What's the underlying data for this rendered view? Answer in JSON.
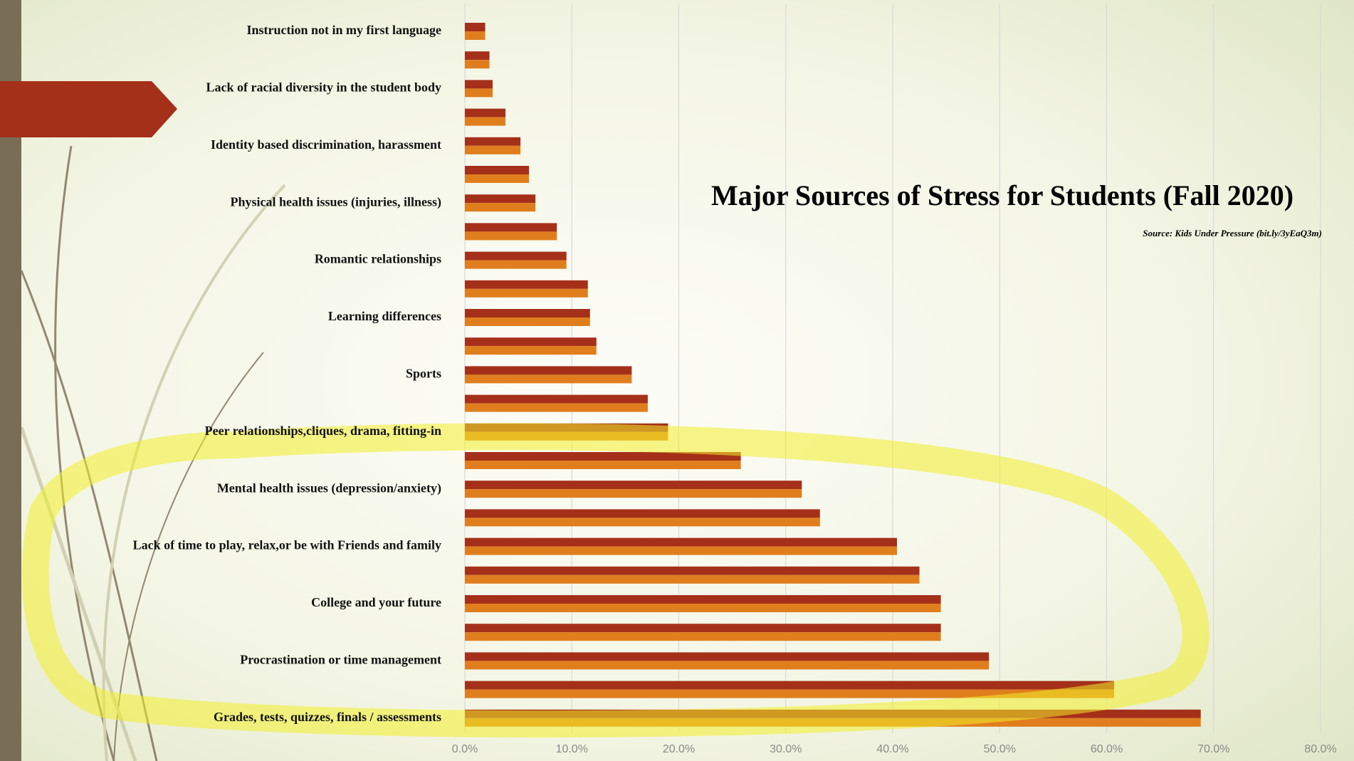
{
  "chart_data": {
    "type": "barh",
    "title": "Major Sources of Stress for Students (Fall 2020)",
    "subtitle": "Source: Kids Under Pressure (bit.ly/3yEaQ3m)",
    "categories": [
      "Instruction not in my first language",
      null,
      "Lack of racial diversity in the student body",
      null,
      "Identity based discrimination, harassment",
      null,
      "Physical health issues (injuries, illness)",
      null,
      "Romantic relationships",
      null,
      "Learning differences",
      null,
      "Sports",
      null,
      "Peer relationships,cliques, drama, fitting-in",
      null,
      "Mental health issues (depression/anxiety)",
      null,
      "Lack of time to play, relax,or be with Friends and family",
      null,
      "College and your future",
      null,
      "Procrastination or time management",
      null,
      "Grades, tests, quizzes, finals / assessments"
    ],
    "series": [
      {
        "color": "#a5301a",
        "values": [
          1.9,
          2.3,
          2.6,
          3.8,
          5.2,
          6.0,
          6.6,
          8.6,
          9.5,
          11.5,
          11.7,
          12.3,
          15.6,
          17.1,
          19.0,
          25.8,
          31.5,
          33.2,
          40.4,
          42.5,
          44.5,
          44.5,
          49.0,
          60.7,
          68.8
        ]
      },
      {
        "color": "#e07e1e",
        "values": [
          1.9,
          2.3,
          2.6,
          3.8,
          5.2,
          6.0,
          6.6,
          8.6,
          9.5,
          11.5,
          11.7,
          12.3,
          15.6,
          17.1,
          19.0,
          25.8,
          31.5,
          33.2,
          40.4,
          42.5,
          44.5,
          44.5,
          49.0,
          60.7,
          68.8
        ]
      }
    ],
    "xlim": [
      0,
      80
    ],
    "xticks": [
      {
        "value": 0,
        "label": "0.0%"
      },
      {
        "value": 10,
        "label": "10.0%"
      },
      {
        "value": 20,
        "label": "20.0%"
      },
      {
        "value": 30,
        "label": "30.0%"
      },
      {
        "value": 40,
        "label": "40.0%"
      },
      {
        "value": 50,
        "label": "50.0%"
      },
      {
        "value": 60,
        "label": "60.0%"
      },
      {
        "value": 70,
        "label": "70.0%"
      },
      {
        "value": 80,
        "label": "80.0%"
      }
    ],
    "grid": true
  }
}
